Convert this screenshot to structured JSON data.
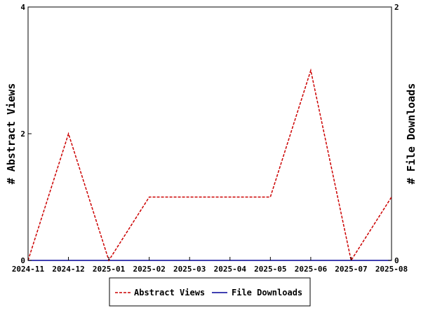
{
  "chart_data": {
    "type": "line",
    "categories": [
      "2024-11",
      "2024-12",
      "2025-01",
      "2025-02",
      "2025-03",
      "2025-04",
      "2025-05",
      "2025-06",
      "2025-07",
      "2025-08"
    ],
    "series": [
      {
        "name": "Abstract Views",
        "axis": "left",
        "color": "#cc0000",
        "dash": "dashed",
        "values": [
          0,
          2,
          0,
          1,
          1,
          1,
          1,
          3,
          0,
          1
        ]
      },
      {
        "name": "File Downloads",
        "axis": "right",
        "color": "#000099",
        "dash": "solid",
        "values": [
          0,
          0,
          0,
          0,
          0,
          0,
          0,
          0,
          0,
          0
        ]
      }
    ],
    "ylabel": "# Abstract Views",
    "y2label": "# File Downloads",
    "ylim": [
      0,
      4
    ],
    "y2lim": [
      0,
      2
    ],
    "yticks": [
      0,
      2,
      4
    ],
    "y2ticks": [
      0,
      2
    ],
    "legend_position": "bottom"
  }
}
